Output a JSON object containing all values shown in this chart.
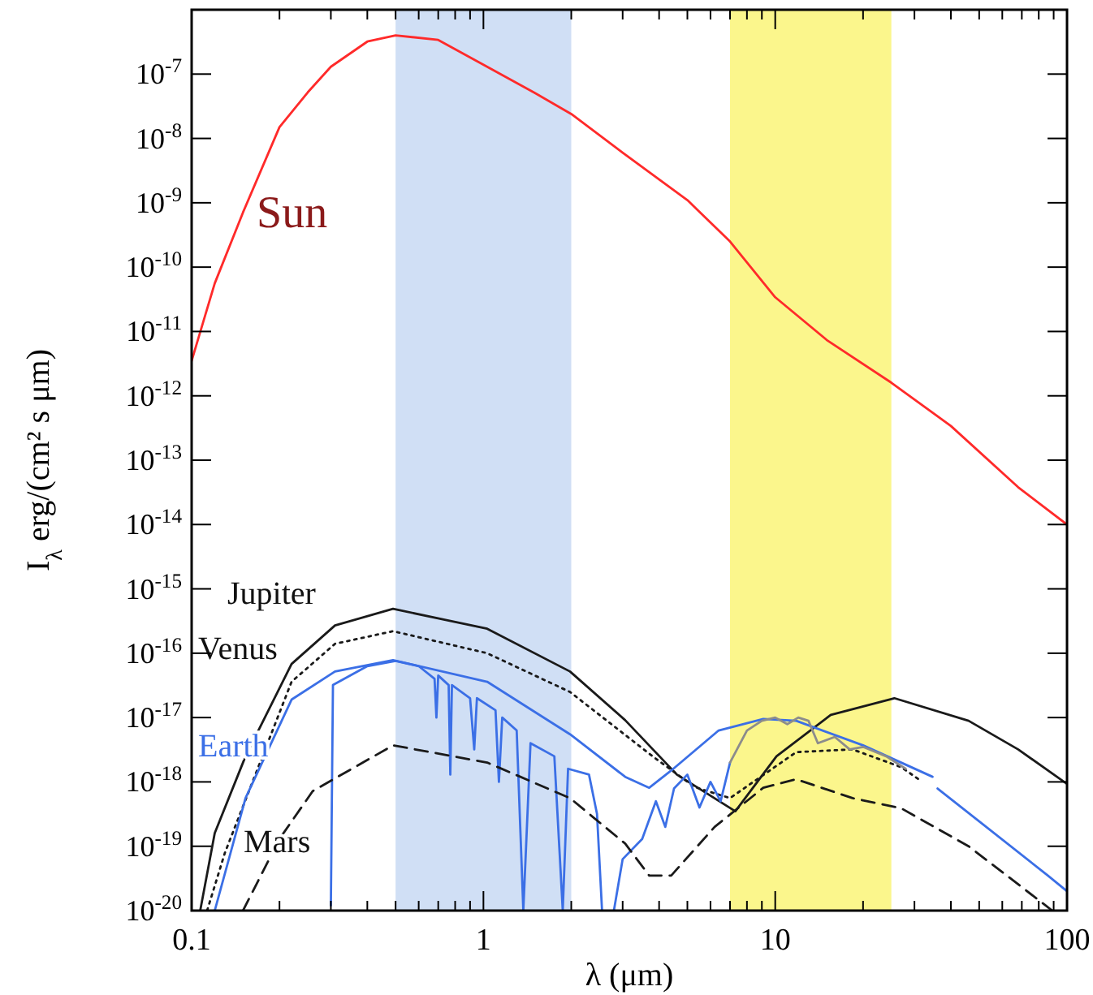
{
  "chart_data": {
    "type": "line",
    "xlabel": "λ (μm)",
    "ylabel": "I$_{λ}$ erg/(cm² s μm)",
    "log": "xy",
    "legend": false,
    "grid": false,
    "xlim": [
      0.1,
      100
    ],
    "xticks": [
      0.1,
      {
        "value": 0.2,
        "label": null
      },
      {
        "value": 0.3,
        "label": null
      },
      {
        "value": 0.4,
        "label": null
      },
      {
        "value": 0.5,
        "label": null
      },
      {
        "value": 0.6,
        "label": null
      },
      {
        "value": 0.7,
        "label": null
      },
      {
        "value": 0.8,
        "label": null
      },
      {
        "value": 0.9,
        "label": null
      },
      1,
      {
        "value": 2,
        "label": null
      },
      {
        "value": 3,
        "label": null
      },
      {
        "value": 4,
        "label": null
      },
      {
        "value": 5,
        "label": null
      },
      {
        "value": 6,
        "label": null
      },
      {
        "value": 7,
        "label": null
      },
      {
        "value": 8,
        "label": null
      },
      {
        "value": 9,
        "label": null
      },
      10,
      {
        "value": 20,
        "label": null
      },
      {
        "value": 30,
        "label": null
      },
      {
        "value": 40,
        "label": null
      },
      {
        "value": 50,
        "label": null
      },
      {
        "value": 60,
        "label": null
      },
      {
        "value": 70,
        "label": null
      },
      {
        "value": 80,
        "label": null
      },
      {
        "value": 90,
        "label": null
      },
      100
    ],
    "ylim": [
      1e-20,
      1e-06
    ],
    "yticks": [
      {
        "value": 1e-20,
        "label": "10$^{-20}$"
      },
      {
        "value": 1e-19,
        "label": "10$^{-19}$"
      },
      {
        "value": 1e-18,
        "label": "10$^{-18}$"
      },
      {
        "value": 1e-17,
        "label": "10$^{-17}$"
      },
      {
        "value": 1e-16,
        "label": "10$^{-16}$"
      },
      {
        "value": 1e-15,
        "label": "10$^{-15}$"
      },
      {
        "value": 1e-14,
        "label": "10$^{-14}$"
      },
      {
        "value": 1e-13,
        "label": "10$^{-13}$"
      },
      {
        "value": 1e-12,
        "label": "10$^{-12}$"
      },
      {
        "value": 1e-11,
        "label": "10$^{-11}$"
      },
      {
        "value": 1e-10,
        "label": "10$^{-10}$"
      },
      {
        "value": 1e-09,
        "label": "10$^{-9}$"
      },
      {
        "value": 1e-08,
        "label": "10$^{-8}$"
      },
      {
        "value": 1e-07,
        "label": "10$^{-7}$"
      },
      {
        "value": 1e-06,
        "label": null
      }
    ],
    "bands": [
      {
        "axis": "x",
        "from": 0.5,
        "to": 2,
        "color": "#d0dff5"
      },
      {
        "axis": "x",
        "from": 7,
        "to": 25,
        "color": "#fbf68c"
      }
    ],
    "series": [
      {
        "name": "Sun",
        "color": "#ff2a2a",
        "line_style": "solid",
        "x": [
          0.1,
          0.12,
          0.15,
          0.2,
          0.25,
          0.3,
          0.4,
          0.5,
          0.7,
          1,
          1.5,
          2,
          3,
          5,
          7,
          10,
          15,
          25,
          40,
          68,
          100
        ],
        "values": [
          3.5e-12,
          5.6e-11,
          7.1e-10,
          1.5e-08,
          5.2e-08,
          1.3e-07,
          3.2e-07,
          4e-07,
          3.4e-07,
          1.4e-07,
          5.1e-08,
          2.4e-08,
          6e-09,
          1.1e-09,
          2.5e-10,
          3.4e-11,
          7.4e-12,
          1.6e-12,
          3.4e-13,
          3.8e-14,
          1e-14
        ]
      },
      {
        "name": "Jupiter",
        "color": "#1a1a1a",
        "line_style": "solid",
        "x": [
          0.107,
          0.12,
          0.153,
          0.22,
          0.31,
          0.49,
          1.03,
          1.98,
          3.06,
          4.6,
          7.3,
          10.1,
          15.5,
          25.6,
          46,
          68,
          100
        ],
        "values": [
          1e-20,
          1.6e-19,
          2.5e-18,
          6.8e-17,
          2.7e-16,
          4.9e-16,
          2.4e-16,
          5.2e-17,
          9.1e-18,
          1.3e-18,
          3.5e-19,
          2.5e-18,
          1.1e-17,
          2e-17,
          8.9e-18,
          3.2e-18,
          9.3e-19
        ]
      },
      {
        "name": "Venus",
        "color": "#1a1a1a",
        "line_style": "dotted",
        "x": [
          0.113,
          0.13,
          0.22,
          0.31,
          0.49,
          1.03,
          1.98,
          3.8,
          5.3,
          7,
          11.8,
          18.4,
          27,
          31
        ],
        "values": [
          1e-20,
          7.9e-20,
          3.6e-17,
          1.4e-16,
          2.2e-16,
          1e-16,
          2.5e-17,
          2.5e-18,
          8.3e-19,
          5.6e-19,
          2.9e-18,
          3.2e-18,
          1.7e-18,
          1.1e-18
        ]
      },
      {
        "name": "Earth",
        "color": "#3b6fe6",
        "line_style": "solid",
        "x": [
          0.12,
          0.153,
          0.22,
          0.31,
          0.49,
          1.03,
          1.98,
          3.06,
          3.7,
          4.4,
          6.4,
          9.1,
          11.8,
          20,
          34.6,
          35,
          36,
          86,
          100
        ],
        "values": [
          1e-20,
          5.6e-19,
          1.9e-17,
          5.2e-17,
          7.8e-17,
          3.6e-17,
          5.5e-18,
          1.2e-18,
          8.1e-19,
          1.5e-18,
          6.3e-18,
          9.5e-18,
          8.9e-18,
          3.7e-18,
          1.2e-18,
          null,
          7.9e-19,
          3.5e-20,
          2e-20
        ]
      },
      {
        "color": "#3b6fe6",
        "line_style": "solid",
        "x": [
          0.3,
          0.305,
          0.4,
          0.5,
          0.6,
          0.68,
          0.69,
          0.7,
          0.76,
          0.77,
          0.78,
          0.9,
          0.93,
          0.95,
          1.1,
          1.13,
          1.16,
          1.3,
          1.37,
          1.45,
          1.75,
          1.87,
          1.95,
          2.3,
          2.45,
          2.55,
          2.65,
          2.8,
          3.0,
          3.5,
          3.9,
          4.2,
          4.5,
          5,
          5.5,
          6,
          6.5,
          7
        ],
        "values": [
          1.2e-20,
          3.2e-17,
          6.3e-17,
          7.6e-17,
          6.3e-17,
          4e-17,
          1e-17,
          4.5e-17,
          3.2e-17,
          1.3e-18,
          3.2e-17,
          2e-17,
          3.2e-18,
          2e-17,
          1.3e-17,
          1e-18,
          1e-17,
          6.3e-18,
          1e-20,
          4e-18,
          2.5e-18,
          1e-20,
          1.6e-18,
          1.3e-18,
          3.2e-19,
          1e-20,
          null,
          1e-20,
          6.3e-20,
          1.3e-19,
          5e-19,
          2e-19,
          7.9e-19,
          1.3e-18,
          4e-19,
          1e-18,
          5e-19,
          2e-18
        ]
      },
      {
        "color": "#8c8c8c",
        "line_style": "solid",
        "x": [
          7,
          8,
          9,
          10,
          11,
          12,
          13,
          14,
          16,
          18,
          20,
          24,
          28
        ],
        "values": [
          2e-18,
          6.3e-18,
          8.9e-18,
          1e-17,
          7.9e-18,
          1e-17,
          8.9e-18,
          4e-18,
          5e-18,
          3.2e-18,
          3.5e-18,
          2.5e-18,
          1.6e-18
        ]
      },
      {
        "name": "Mars",
        "color": "#1a1a1a",
        "line_style": "dashed",
        "x": [
          0.15,
          0.2,
          0.26,
          0.49,
          1.03,
          1.98,
          3.06,
          3.7,
          4.4,
          6.2,
          9.1,
          11.8,
          18.4,
          27,
          46,
          72,
          89
        ],
        "values": [
          1e-20,
          1.3e-19,
          7.2e-19,
          3.7e-18,
          2e-18,
          5.6e-19,
          1.1e-19,
          3.5e-20,
          3.5e-20,
          2e-19,
          8.1e-19,
          1.1e-18,
          5.6e-19,
          3.9e-19,
          1e-19,
          2.1e-20,
          1e-20
        ]
      }
    ]
  }
}
